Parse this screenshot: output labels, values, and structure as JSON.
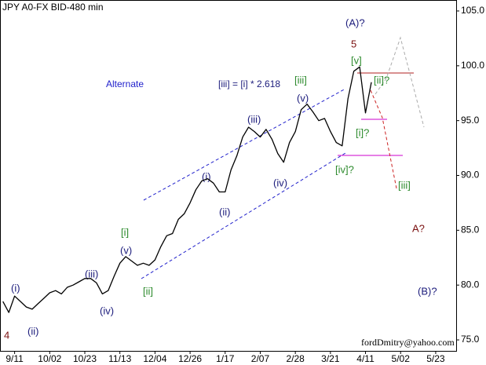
{
  "chart_data": {
    "type": "line",
    "title": "JPY A0-FX BID-480 min",
    "categories": [
      null,
      null,
      "9/11",
      null,
      null,
      null,
      null,
      null,
      "10/02",
      null,
      null,
      null,
      null,
      null,
      "10/23",
      null,
      null,
      null,
      null,
      null,
      "11/13",
      null,
      null,
      null,
      null,
      null,
      "12/04",
      null,
      null,
      null,
      null,
      null,
      "12/26",
      null,
      null,
      null,
      null,
      null,
      "1/17",
      null,
      null,
      null,
      null,
      null,
      "2/07",
      null,
      null,
      null,
      null,
      null,
      "2/28",
      null,
      null,
      null,
      null,
      null,
      "3/21",
      null,
      null,
      null,
      null,
      null,
      "4/11",
      null,
      null,
      null,
      null,
      null,
      "5/02",
      null,
      null,
      null,
      null,
      null,
      "5/23",
      null,
      null,
      null
    ],
    "series": [
      {
        "name": "JPY A0-FX BID",
        "color": "#000000",
        "values": [
          78.5,
          77.5,
          79.0,
          78.5,
          78.0,
          77.8,
          78.3,
          78.8,
          79.3,
          79.5,
          79.2,
          79.8,
          80.0,
          80.3,
          80.6,
          80.6,
          80.2,
          79.2,
          79.5,
          80.8,
          82.0,
          82.6,
          82.2,
          81.8,
          82.0,
          81.8,
          82.3,
          83.5,
          84.5,
          84.7,
          86.0,
          86.5,
          87.5,
          88.7,
          89.5,
          89.7,
          89.3,
          88.5,
          88.5,
          90.5,
          91.8,
          93.5,
          94.4,
          94.0,
          93.5,
          94.2,
          93.3,
          92.0,
          91.2,
          93.0,
          94.0,
          96.0,
          96.5,
          95.8,
          95.0,
          95.2,
          94.0,
          93.0,
          92.7,
          97.0,
          99.5,
          99.9,
          95.7,
          98.5,
          null,
          null,
          null,
          null,
          null,
          null,
          null,
          null,
          null,
          null,
          null,
          null,
          null,
          null
        ]
      }
    ],
    "ylim": [
      74,
      106
    ],
    "yticks": [
      {
        "value": 75,
        "label": "75.0"
      },
      {
        "value": 80,
        "label": "80.0"
      },
      {
        "value": 85,
        "label": "85.0"
      },
      {
        "value": 90,
        "label": "90.0"
      },
      {
        "value": 95,
        "label": "95.0"
      },
      {
        "value": 100,
        "label": "100.0"
      },
      {
        "value": 105,
        "label": "105.0"
      }
    ],
    "grid": false,
    "annotations": [
      "(A)?",
      "5",
      "[v]",
      "[iii]",
      "[iii] = [i] * 2.618",
      "Alternate",
      "(v)",
      "(iii)",
      "(i)",
      "(ii)",
      "(iv)",
      "[i]",
      "(v)",
      "[ii]",
      "(iii)",
      "(iv)",
      "(i)",
      "(ii)",
      "4",
      "[iv]?",
      "[i]?",
      "[ii]?",
      "[iii]",
      "A?",
      "(B)?",
      "fordDmitry@yahoo.com"
    ]
  }
}
